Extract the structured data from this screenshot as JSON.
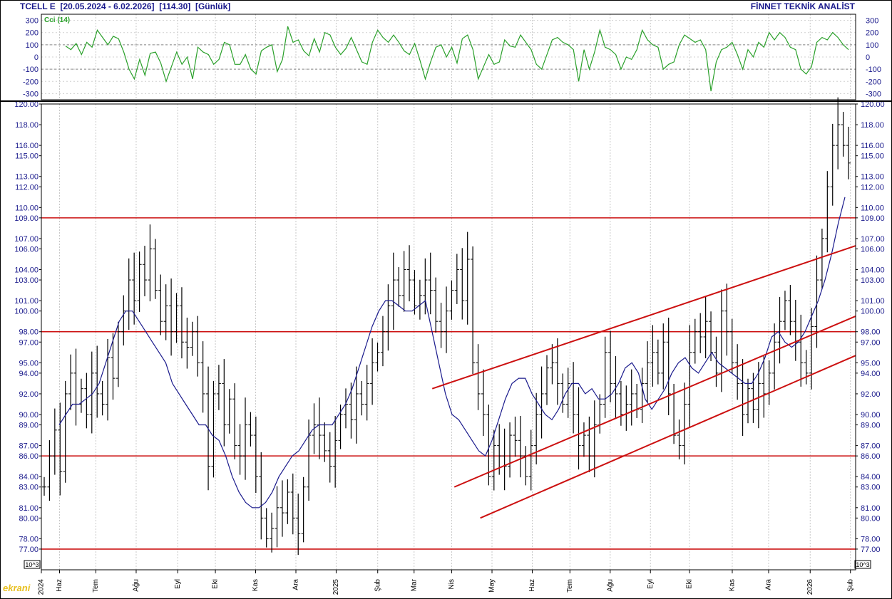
{
  "header": {
    "symbol": "TCELL E",
    "range": "[20.05.2024 - 6.02.2026]",
    "last": "[114.30]",
    "period": "[Günlük]",
    "brand": "FİNNET TEKNİK ANALİST"
  },
  "watermark": "ekrani",
  "colors": {
    "price": "#000000",
    "ma": "#1a1a8c",
    "cci": "#2aa02a",
    "lines": "#cc1010",
    "axis": "#1a1a8c"
  },
  "chart_data": [
    {
      "type": "line",
      "panel": "cci",
      "title": "Cci (14)",
      "ylim": [
        -350,
        350
      ],
      "yticks": [
        300,
        200,
        100,
        0,
        -100,
        -200,
        -300
      ],
      "ref_levels": [
        100,
        -100
      ],
      "grid": true,
      "x_start": "2024-05-20",
      "x_end": "2026-02-06",
      "values": [
        90,
        60,
        110,
        20,
        120,
        80,
        220,
        160,
        100,
        170,
        150,
        40,
        -100,
        -180,
        -20,
        -150,
        30,
        40,
        -50,
        -200,
        -80,
        40,
        -60,
        0,
        -180,
        80,
        40,
        20,
        -60,
        -20,
        120,
        100,
        -60,
        -60,
        20,
        -100,
        -140,
        50,
        80,
        100,
        -120,
        -20,
        250,
        120,
        140,
        50,
        10,
        150,
        40,
        200,
        180,
        80,
        20,
        70,
        160,
        60,
        -40,
        -60,
        120,
        220,
        160,
        120,
        180,
        120,
        50,
        20,
        110,
        -30,
        -180,
        -40,
        80,
        100,
        0,
        80,
        -50,
        150,
        180,
        60,
        -180,
        -80,
        20,
        -60,
        -40,
        140,
        90,
        80,
        180,
        120,
        60,
        -60,
        -100,
        20,
        140,
        160,
        120,
        100,
        60,
        -200,
        60,
        -100,
        40,
        220,
        80,
        60,
        20,
        -100,
        0,
        -20,
        60,
        220,
        140,
        100,
        80,
        -100,
        -60,
        -40,
        100,
        180,
        150,
        120,
        140,
        60,
        -280,
        -40,
        60,
        80,
        120,
        20,
        -100,
        60,
        0,
        120,
        80,
        200,
        140,
        200,
        160,
        80,
        60,
        -100,
        -140,
        -80,
        120,
        160,
        140,
        200,
        160,
        100,
        60
      ],
      "xlabel": "",
      "ylabel": ""
    },
    {
      "type": "ohlc",
      "panel": "price",
      "ylim": [
        75,
        120
      ],
      "yticks": [
        "120.00",
        "118.00",
        "116.00",
        "115.00",
        "113.00",
        "112.00",
        "110.00",
        "109.00",
        "107.00",
        "106.00",
        "104.00",
        "103.00",
        "101.00",
        "100.00",
        "98.00",
        "97.00",
        "95.00",
        "94.00",
        "92.00",
        "90.00",
        "89.00",
        "87.00",
        "86.00",
        "84.00",
        "83.00",
        "81.00",
        "80.00",
        "78.00",
        "77.00"
      ],
      "xticks": [
        "2024",
        "Haz",
        "Tem",
        "Ağu",
        "Eyl",
        "Eki",
        "Kas",
        "Ara",
        "2025",
        "Şub",
        "Mar",
        "Nis",
        "May",
        "Haz",
        "Tem",
        "Ağu",
        "Eyl",
        "Eki",
        "Kas",
        "Ara",
        "2026",
        "Şub"
      ],
      "xtick_dates": [
        "2024-05-20",
        "2024-06-03",
        "2024-07-01",
        "2024-08-01",
        "2024-09-02",
        "2024-10-01",
        "2024-11-01",
        "2024-12-02",
        "2025-01-02",
        "2025-02-03",
        "2025-03-03",
        "2025-04-01",
        "2025-05-02",
        "2025-06-02",
        "2025-07-01",
        "2025-08-01",
        "2025-09-01",
        "2025-10-01",
        "2025-11-03",
        "2025-12-01",
        "2026-01-02",
        "2026-02-02"
      ],
      "scale_note": "10^3",
      "x_start": "2024-05-20",
      "x_end": "2026-02-06",
      "closes": [
        83.0,
        86.0,
        88.5,
        84.5,
        92.0,
        94.0,
        91.0,
        92.5,
        90.0,
        94.0,
        92.0,
        91.0,
        95.5,
        93.5,
        98.0,
        100.0,
        103.0,
        101.0,
        104.5,
        103.0,
        106.0,
        102.0,
        99.0,
        100.5,
        98.0,
        100.5,
        97.0,
        96.5,
        98.0,
        95.0,
        92.0,
        85.0,
        92.0,
        93.0,
        89.0,
        91.5,
        87.0,
        86.0,
        89.0,
        88.0,
        84.0,
        80.0,
        78.0,
        79.0,
        81.0,
        80.5,
        82.5,
        80.0,
        78.5,
        83.0,
        88.0,
        89.0,
        88.0,
        86.5,
        85.0,
        87.5,
        90.0,
        91.0,
        89.5,
        92.0,
        91.0,
        93.0,
        95.0,
        96.0,
        98.0,
        100.5,
        103.0,
        101.5,
        104.0,
        103.0,
        100.5,
        101.5,
        103.0,
        102.0,
        99.0,
        98.0,
        100.0,
        102.0,
        104.0,
        101.0,
        105.0,
        95.0,
        92.0,
        90.0,
        84.0,
        87.0,
        86.0,
        85.0,
        88.0,
        87.5,
        86.0,
        84.0,
        87.0,
        90.0,
        92.0,
        94.5,
        95.0,
        93.0,
        91.0,
        93.0,
        90.0,
        87.0,
        88.0,
        86.0,
        89.0,
        91.0,
        96.0,
        93.0,
        92.0,
        90.0,
        91.0,
        92.0,
        90.5,
        93.0,
        95.0,
        96.0,
        94.0,
        97.0,
        92.0,
        88.0,
        87.0,
        91.0,
        96.0,
        98.0,
        97.5,
        99.0,
        96.0,
        94.0,
        100.0,
        98.0,
        95.0,
        93.0,
        90.0,
        92.5,
        90.5,
        93.0,
        92.0,
        94.0,
        97.0,
        99.0,
        101.0,
        99.0,
        97.0,
        95.0,
        94.0,
        98.5,
        103.0,
        107.0,
        112.0,
        116.0,
        118.0,
        116.0,
        114.3
      ],
      "ma_values": [
        89.0,
        90.0,
        91.0,
        91.0,
        91.5,
        92.0,
        93.0,
        95.0,
        97.0,
        99.0,
        100.0,
        100.0,
        99.0,
        98.0,
        97.0,
        96.0,
        95.0,
        93.0,
        92.0,
        91.0,
        90.0,
        89.0,
        89.0,
        88.0,
        87.5,
        86.0,
        84.0,
        82.5,
        81.5,
        81.0,
        81.0,
        81.5,
        82.5,
        84.0,
        85.0,
        86.0,
        86.5,
        87.5,
        88.5,
        89.0,
        89.0,
        89.0,
        90.0,
        91.0,
        92.5,
        94.5,
        96.5,
        98.5,
        100.0,
        101.0,
        101.0,
        100.5,
        100.0,
        100.0,
        100.5,
        101.0,
        98.0,
        95.0,
        92.0,
        90.0,
        89.5,
        88.5,
        87.5,
        86.5,
        86.0,
        87.5,
        89.5,
        91.5,
        93.0,
        93.5,
        93.5,
        92.0,
        91.0,
        90.0,
        89.5,
        90.5,
        92.0,
        93.0,
        93.0,
        92.0,
        92.5,
        91.5,
        91.5,
        92.0,
        93.0,
        94.5,
        95.0,
        94.0,
        91.5,
        90.5,
        91.5,
        92.5,
        94.0,
        95.0,
        95.5,
        94.5,
        94.0,
        95.0,
        96.0,
        95.0,
        94.5,
        94.0,
        93.5,
        93.0,
        93.0,
        94.0,
        95.5,
        97.5,
        98.0,
        97.0,
        96.5,
        97.0,
        98.0,
        99.5,
        101.0,
        103.0,
        105.5,
        108.5,
        111.0
      ],
      "hlines": [
        109.0,
        98.0,
        86.0,
        77.0
      ],
      "trendlines": [
        {
          "from": [
            "2025-03-17",
            92.5
          ],
          "to": [
            "2026-02-06",
            106.3
          ]
        },
        {
          "from": [
            "2025-04-03",
            83.0
          ],
          "to": [
            "2026-02-06",
            99.5
          ]
        },
        {
          "from": [
            "2025-04-23",
            80.0
          ],
          "to": [
            "2026-02-06",
            95.7
          ]
        }
      ],
      "xlabel": "",
      "ylabel": ""
    }
  ]
}
